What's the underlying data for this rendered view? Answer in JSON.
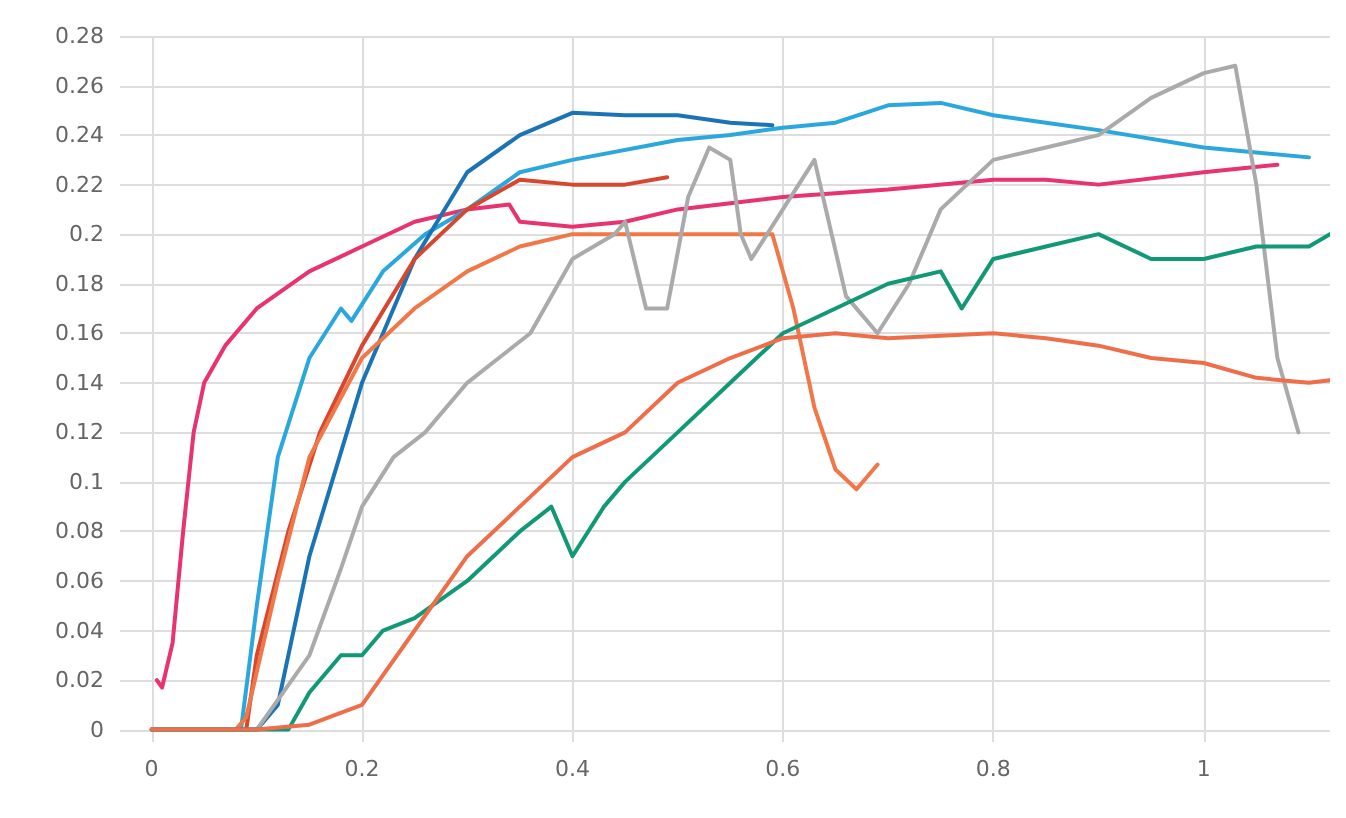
{
  "chart_data": {
    "type": "line",
    "xlim": [
      -0.03,
      1.12
    ],
    "ylim": [
      -0.005,
      0.28
    ],
    "xticks": [
      0,
      0.2,
      0.4,
      0.6,
      0.8,
      1
    ],
    "yticks": [
      0,
      0.02,
      0.04,
      0.06,
      0.08,
      0.1,
      0.12,
      0.14,
      0.16,
      0.18,
      0.2,
      0.22,
      0.24,
      0.26,
      0.28
    ],
    "grid": true,
    "marker": "none",
    "line_style": "solid",
    "series": [
      {
        "color": "#e8336e",
        "x": [
          0.005,
          0.01,
          0.02,
          0.03,
          0.04,
          0.05,
          0.07,
          0.1,
          0.15,
          0.2,
          0.25,
          0.3,
          0.34,
          0.35,
          0.4,
          0.45,
          0.5,
          0.6,
          0.7,
          0.8,
          0.85,
          0.9,
          1.0,
          1.07
        ],
        "values": [
          0.02,
          0.017,
          0.035,
          0.08,
          0.12,
          0.14,
          0.155,
          0.17,
          0.185,
          0.195,
          0.205,
          0.21,
          0.212,
          0.205,
          0.203,
          0.205,
          0.21,
          0.215,
          0.218,
          0.222,
          0.222,
          0.22,
          0.225,
          0.228
        ]
      },
      {
        "color": "#2aa8de",
        "x": [
          0.085,
          0.1,
          0.12,
          0.15,
          0.18,
          0.19,
          0.22,
          0.26,
          0.3,
          0.35,
          0.4,
          0.5,
          0.55,
          0.6,
          0.65,
          0.7,
          0.75,
          0.8,
          0.85,
          0.9,
          1.0,
          1.05,
          1.1
        ],
        "values": [
          0,
          0.05,
          0.11,
          0.15,
          0.17,
          0.165,
          0.185,
          0.2,
          0.21,
          0.225,
          0.23,
          0.238,
          0.24,
          0.243,
          0.245,
          0.252,
          0.253,
          0.248,
          0.245,
          0.242,
          0.235,
          0.233,
          0.231
        ]
      },
      {
        "color": "#1a73b5",
        "x": [
          0,
          0.1,
          0.12,
          0.15,
          0.2,
          0.25,
          0.3,
          0.35,
          0.4,
          0.45,
          0.5,
          0.55,
          0.59
        ],
        "values": [
          0,
          0,
          0.01,
          0.07,
          0.14,
          0.19,
          0.225,
          0.24,
          0.249,
          0.248,
          0.248,
          0.245,
          0.244
        ]
      },
      {
        "color": "#d9462e",
        "x": [
          0.09,
          0.1,
          0.13,
          0.16,
          0.2,
          0.25,
          0.3,
          0.35,
          0.4,
          0.45,
          0.49
        ],
        "values": [
          0,
          0.03,
          0.08,
          0.12,
          0.155,
          0.19,
          0.21,
          0.222,
          0.22,
          0.22,
          0.223
        ]
      },
      {
        "color": "#f07848",
        "x": [
          0,
          0.08,
          0.09,
          0.12,
          0.15,
          0.2,
          0.25,
          0.3,
          0.35,
          0.4,
          0.5,
          0.59,
          0.61,
          0.63,
          0.65,
          0.67,
          0.69
        ],
        "values": [
          0,
          0,
          0.005,
          0.06,
          0.11,
          0.15,
          0.17,
          0.185,
          0.195,
          0.2,
          0.2,
          0.2,
          0.17,
          0.13,
          0.105,
          0.097,
          0.107
        ]
      },
      {
        "color": "#aaaaaa",
        "x": [
          0.1,
          0.15,
          0.18,
          0.2,
          0.23,
          0.26,
          0.3,
          0.33,
          0.36,
          0.4,
          0.44,
          0.45,
          0.47,
          0.49,
          0.51,
          0.53,
          0.55,
          0.56,
          0.57,
          0.6,
          0.63,
          0.66,
          0.69,
          0.72,
          0.75,
          0.8,
          0.85,
          0.9,
          0.95,
          1.0,
          1.03,
          1.05,
          1.07,
          1.09
        ],
        "values": [
          0,
          0.03,
          0.065,
          0.09,
          0.11,
          0.12,
          0.14,
          0.15,
          0.16,
          0.19,
          0.2,
          0.205,
          0.17,
          0.17,
          0.215,
          0.235,
          0.23,
          0.2,
          0.19,
          0.21,
          0.23,
          0.175,
          0.16,
          0.18,
          0.21,
          0.23,
          0.235,
          0.24,
          0.255,
          0.265,
          0.268,
          0.22,
          0.15,
          0.12
        ]
      },
      {
        "color": "#119977",
        "x": [
          0,
          0.13,
          0.15,
          0.18,
          0.2,
          0.22,
          0.25,
          0.3,
          0.35,
          0.38,
          0.4,
          0.43,
          0.45,
          0.5,
          0.55,
          0.6,
          0.65,
          0.7,
          0.75,
          0.77,
          0.8,
          0.85,
          0.9,
          0.95,
          1.0,
          1.05,
          1.1,
          1.12
        ],
        "values": [
          0,
          0,
          0.015,
          0.03,
          0.03,
          0.04,
          0.045,
          0.06,
          0.08,
          0.09,
          0.07,
          0.09,
          0.1,
          0.12,
          0.14,
          0.16,
          0.17,
          0.18,
          0.185,
          0.17,
          0.19,
          0.195,
          0.2,
          0.19,
          0.19,
          0.195,
          0.195,
          0.2
        ]
      },
      {
        "color": "#ee6e4a",
        "x": [
          0,
          0.1,
          0.15,
          0.2,
          0.25,
          0.3,
          0.35,
          0.4,
          0.45,
          0.5,
          0.55,
          0.6,
          0.65,
          0.7,
          0.8,
          0.85,
          0.9,
          0.95,
          1.0,
          1.05,
          1.1,
          1.12
        ],
        "values": [
          0,
          0,
          0.002,
          0.01,
          0.04,
          0.07,
          0.09,
          0.11,
          0.12,
          0.14,
          0.15,
          0.158,
          0.16,
          0.158,
          0.16,
          0.158,
          0.155,
          0.15,
          0.148,
          0.142,
          0.14,
          0.141
        ]
      }
    ]
  }
}
